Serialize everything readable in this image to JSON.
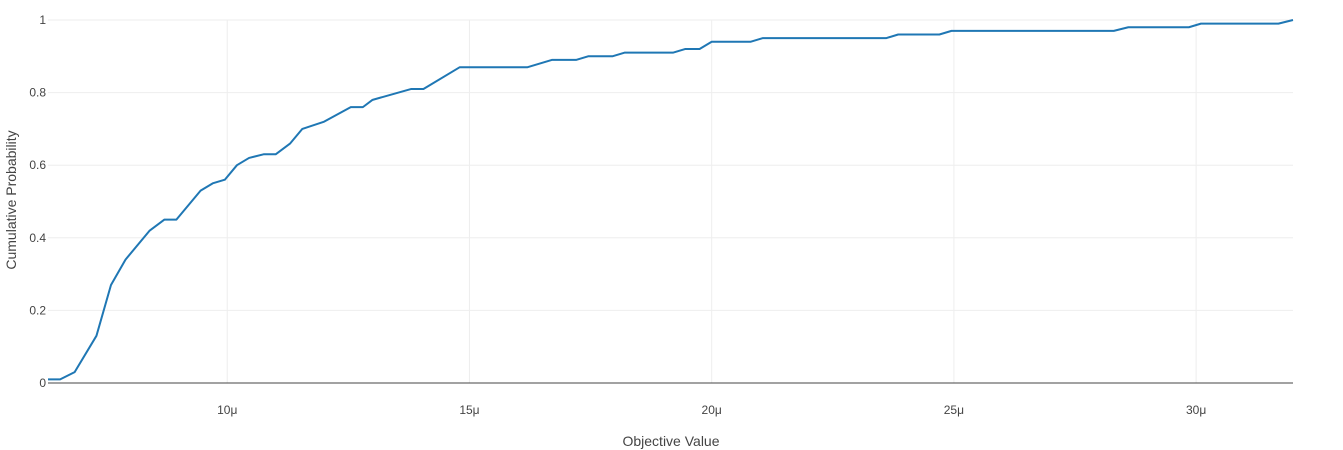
{
  "chart_data": {
    "type": "line",
    "xlabel": "Objective Value",
    "ylabel": "Cumulative Probability",
    "xlim": [
      6.3e-06,
      3.2e-05
    ],
    "ylim": [
      0,
      1
    ],
    "x_ticks": [
      {
        "value": 1e-05,
        "label": "10μ"
      },
      {
        "value": 1.5e-05,
        "label": "15μ"
      },
      {
        "value": 2e-05,
        "label": "20μ"
      },
      {
        "value": 2.5e-05,
        "label": "25μ"
      },
      {
        "value": 3e-05,
        "label": "30μ"
      }
    ],
    "y_ticks": [
      {
        "value": 0,
        "label": "0"
      },
      {
        "value": 0.2,
        "label": "0.2"
      },
      {
        "value": 0.4,
        "label": "0.4"
      },
      {
        "value": 0.6,
        "label": "0.6"
      },
      {
        "value": 0.8,
        "label": "0.8"
      },
      {
        "value": 1,
        "label": "1"
      }
    ],
    "grid": true,
    "series": [
      {
        "color": "#1f77b4",
        "x": [
          6.3e-06,
          6.55e-06,
          6.85e-06,
          7.3e-06,
          7.6e-06,
          7.9e-06,
          8.4e-06,
          8.7e-06,
          8.95e-06,
          9.45e-06,
          9.7e-06,
          9.95e-06,
          1.02e-05,
          1.045e-05,
          1.075e-05,
          1.1e-05,
          1.13e-05,
          1.155e-05,
          1.2e-05,
          1.255e-05,
          1.28e-05,
          1.3e-05,
          1.38e-05,
          1.405e-05,
          1.48e-05,
          1.62e-05,
          1.67e-05,
          1.72e-05,
          1.745e-05,
          1.795e-05,
          1.82e-05,
          1.92e-05,
          1.945e-05,
          1.975e-05,
          2e-05,
          2.08e-05,
          2.105e-05,
          2.36e-05,
          2.385e-05,
          2.47e-05,
          2.495e-05,
          2.83e-05,
          2.86e-05,
          2.985e-05,
          3.01e-05,
          3.17e-05,
          3.2e-05
        ],
        "y": [
          0.01,
          0.01,
          0.03,
          0.13,
          0.27,
          0.34,
          0.42,
          0.45,
          0.45,
          0.53,
          0.55,
          0.56,
          0.6,
          0.62,
          0.63,
          0.63,
          0.66,
          0.7,
          0.72,
          0.76,
          0.76,
          0.78,
          0.81,
          0.81,
          0.87,
          0.87,
          0.89,
          0.89,
          0.9,
          0.9,
          0.91,
          0.91,
          0.92,
          0.92,
          0.94,
          0.94,
          0.95,
          0.95,
          0.96,
          0.96,
          0.97,
          0.97,
          0.98,
          0.98,
          0.99,
          0.99,
          1.0
        ]
      }
    ]
  }
}
